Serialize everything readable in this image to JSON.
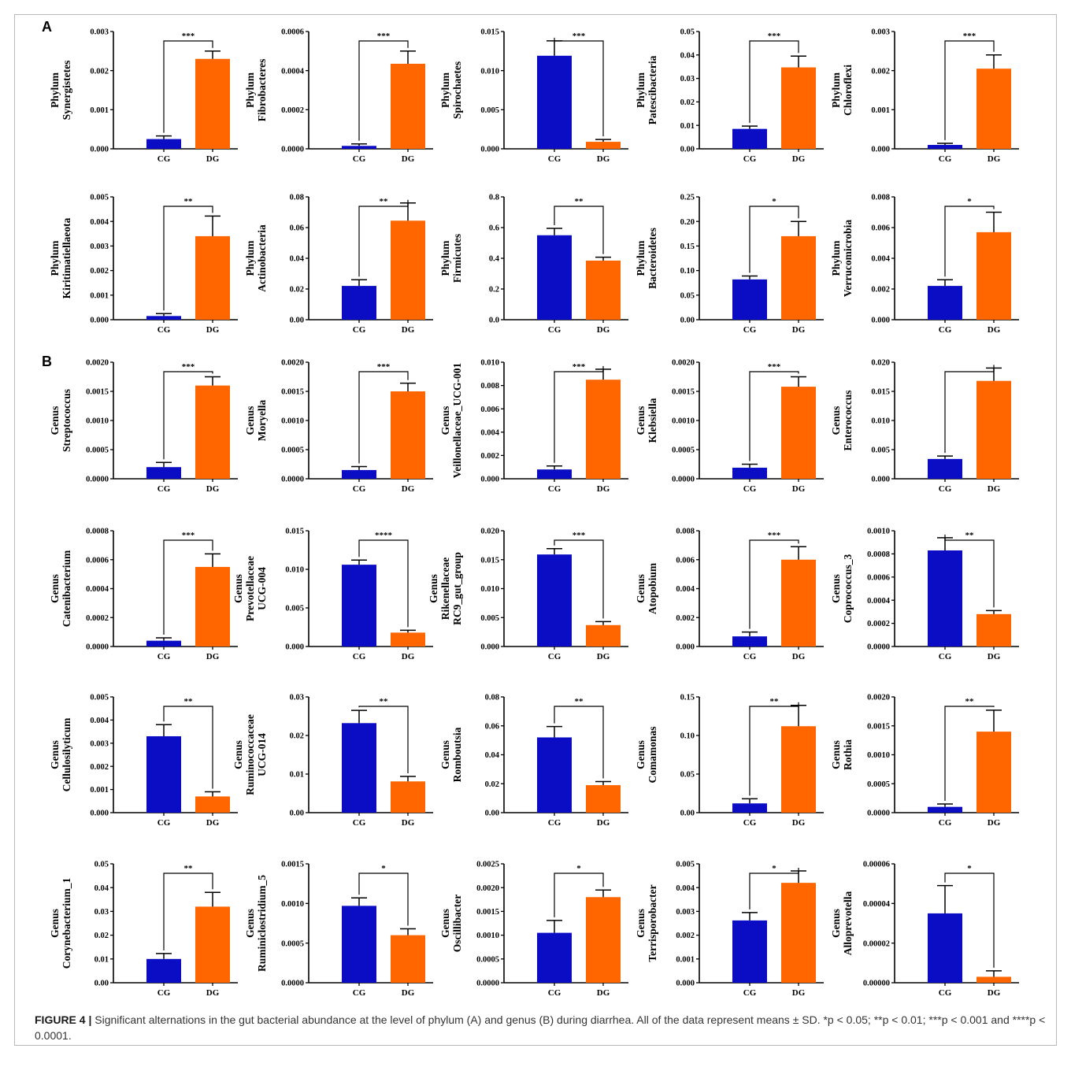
{
  "panel_labels": [
    "A",
    "B"
  ],
  "colors": {
    "CG": "#0b0dc4",
    "DG": "#ff6600"
  },
  "caption": {
    "label": "FIGURE 4 |",
    "text": " Significant alternations in the gut bacterial abundance at the level of phylum (A) and genus (B) during diarrhea. All of the data represent means ± SD. *p < 0.05; **p < 0.01; ***p < 0.001 and ****p < 0.0001."
  },
  "chart_data": [
    {
      "type": "bar",
      "ylabel": [
        "Phylum",
        "Synergistetes"
      ],
      "categories": [
        "CG",
        "DG"
      ],
      "values": [
        0.00025,
        0.0023
      ],
      "errors": [
        8e-05,
        0.0002
      ],
      "ylim": [
        0,
        0.003
      ],
      "yticks": [
        "0.000",
        "0.001",
        "0.002",
        "0.003"
      ],
      "significance": "***"
    },
    {
      "type": "bar",
      "ylabel": [
        "Phylum",
        "Fibrobacteres"
      ],
      "categories": [
        "CG",
        "DG"
      ],
      "values": [
        1.5e-05,
        0.000435
      ],
      "errors": [
        1e-05,
        6.5e-05
      ],
      "ylim": [
        0,
        0.0006
      ],
      "yticks": [
        "0.0000",
        "0.0002",
        "0.0004",
        "0.0006"
      ],
      "significance": "***"
    },
    {
      "type": "bar",
      "ylabel": [
        "Phylum",
        "Spirochaetes"
      ],
      "categories": [
        "CG",
        "DG"
      ],
      "values": [
        0.0119,
        0.0009
      ],
      "errors": [
        0.0019,
        0.0003
      ],
      "ylim": [
        0,
        0.015
      ],
      "yticks": [
        "0.000",
        "0.005",
        "0.010",
        "0.015"
      ],
      "significance": "***"
    },
    {
      "type": "bar",
      "ylabel": [
        "Phylum",
        "Patescibacteria"
      ],
      "categories": [
        "CG",
        "DG"
      ],
      "values": [
        0.0085,
        0.0347
      ],
      "errors": [
        0.0012,
        0.0048
      ],
      "ylim": [
        0,
        0.05
      ],
      "yticks": [
        "0.00",
        "0.01",
        "0.02",
        "0.03",
        "0.04",
        "0.05"
      ],
      "significance": "***"
    },
    {
      "type": "bar",
      "ylabel": [
        "Phylum",
        "Chloroflexi"
      ],
      "categories": [
        "CG",
        "DG"
      ],
      "values": [
        0.0001,
        0.00205
      ],
      "errors": [
        4e-05,
        0.00035
      ],
      "ylim": [
        0,
        0.003
      ],
      "yticks": [
        "0.000",
        "0.001",
        "0.002",
        "0.003"
      ],
      "significance": "***"
    },
    {
      "type": "bar",
      "ylabel": [
        "Phylum",
        "Kiritimatiellaeota"
      ],
      "categories": [
        "CG",
        "DG"
      ],
      "values": [
        0.00015,
        0.0034
      ],
      "errors": [
        0.0001,
        0.00082
      ],
      "ylim": [
        0,
        0.005
      ],
      "yticks": [
        "0.000",
        "0.001",
        "0.002",
        "0.003",
        "0.004",
        "0.005"
      ],
      "significance": "**"
    },
    {
      "type": "bar",
      "ylabel": [
        "Phylum",
        "Actinobacteria"
      ],
      "categories": [
        "CG",
        "DG"
      ],
      "values": [
        0.022,
        0.0645
      ],
      "errors": [
        0.004,
        0.0115
      ],
      "ylim": [
        0,
        0.08
      ],
      "yticks": [
        "0.00",
        "0.02",
        "0.04",
        "0.06",
        "0.08"
      ],
      "significance": "**"
    },
    {
      "type": "bar",
      "ylabel": [
        "Phylum",
        "Firmicutes"
      ],
      "categories": [
        "CG",
        "DG"
      ],
      "values": [
        0.55,
        0.385
      ],
      "errors": [
        0.045,
        0.022
      ],
      "ylim": [
        0,
        0.8
      ],
      "yticks": [
        "0.0",
        "0.2",
        "0.4",
        "0.6",
        "0.8"
      ],
      "significance": "**"
    },
    {
      "type": "bar",
      "ylabel": [
        "Phylum",
        "Bacteroidetes"
      ],
      "categories": [
        "CG",
        "DG"
      ],
      "values": [
        0.082,
        0.17
      ],
      "errors": [
        0.007,
        0.03
      ],
      "ylim": [
        0,
        0.25
      ],
      "yticks": [
        "0.00",
        "0.05",
        "0.10",
        "0.15",
        "0.20",
        "0.25"
      ],
      "significance": "*"
    },
    {
      "type": "bar",
      "ylabel": [
        "Phylum",
        "Verrucomicrobia"
      ],
      "categories": [
        "CG",
        "DG"
      ],
      "values": [
        0.0022,
        0.0057
      ],
      "errors": [
        0.0004,
        0.0013
      ],
      "ylim": [
        0,
        0.008
      ],
      "yticks": [
        "0.000",
        "0.002",
        "0.004",
        "0.006",
        "0.008"
      ],
      "significance": "*"
    },
    {
      "type": "bar",
      "ylabel": [
        "Genus",
        "Streptococcus"
      ],
      "categories": [
        "CG",
        "DG"
      ],
      "values": [
        0.0002,
        0.0016
      ],
      "errors": [
        8e-05,
        0.00015
      ],
      "ylim": [
        0,
        0.002
      ],
      "yticks": [
        "0.0000",
        "0.0005",
        "0.0010",
        "0.0015",
        "0.0020"
      ],
      "significance": "***"
    },
    {
      "type": "bar",
      "ylabel": [
        "Genus",
        "Moryella"
      ],
      "categories": [
        "CG",
        "DG"
      ],
      "values": [
        0.00015,
        0.0015
      ],
      "errors": [
        6e-05,
        0.00014
      ],
      "ylim": [
        0,
        0.002
      ],
      "yticks": [
        "0.0000",
        "0.0005",
        "0.0010",
        "0.0015",
        "0.0020"
      ],
      "significance": "***"
    },
    {
      "type": "bar",
      "ylabel": [
        "Genus",
        "Veillonellaceae_UCG-001"
      ],
      "categories": [
        "CG",
        "DG"
      ],
      "values": [
        0.0008,
        0.0085
      ],
      "errors": [
        0.0003,
        0.0009
      ],
      "ylim": [
        0,
        0.01
      ],
      "yticks": [
        "0.000",
        "0.002",
        "0.004",
        "0.006",
        "0.008",
        "0.010"
      ],
      "significance": "***"
    },
    {
      "type": "bar",
      "ylabel": [
        "Genus",
        "Klebsiella"
      ],
      "categories": [
        "CG",
        "DG"
      ],
      "values": [
        0.00019,
        0.00158
      ],
      "errors": [
        6e-05,
        0.00017
      ],
      "ylim": [
        0,
        0.002
      ],
      "yticks": [
        "0.0000",
        "0.0005",
        "0.0010",
        "0.0015",
        "0.0020"
      ],
      "significance": "***"
    },
    {
      "type": "bar",
      "ylabel": [
        "Genus",
        "Enterococcus"
      ],
      "categories": [
        "CG",
        "DG"
      ],
      "values": [
        0.0034,
        0.0168
      ],
      "errors": [
        0.0005,
        0.0022
      ],
      "ylim": [
        0,
        0.02
      ],
      "yticks": [
        "0.000",
        "0.005",
        "0.010",
        "0.015",
        "0.020"
      ],
      "significance": ""
    },
    {
      "type": "bar",
      "ylabel": [
        "Genus",
        "Catenibacterium"
      ],
      "categories": [
        "CG",
        "DG"
      ],
      "values": [
        4e-05,
        0.00055
      ],
      "errors": [
        2e-05,
        9e-05
      ],
      "ylim": [
        0,
        0.0008
      ],
      "yticks": [
        "0.0000",
        "0.0002",
        "0.0004",
        "0.0006",
        "0.0008"
      ],
      "significance": "***"
    },
    {
      "type": "bar",
      "ylabel": [
        "Genus",
        "Prevotellaceae",
        "UCG-004"
      ],
      "categories": [
        "CG",
        "DG"
      ],
      "values": [
        0.0106,
        0.0018
      ],
      "errors": [
        0.0006,
        0.0003
      ],
      "ylim": [
        0,
        0.015
      ],
      "yticks": [
        "0.000",
        "0.005",
        "0.010",
        "0.015"
      ],
      "significance": "****"
    },
    {
      "type": "bar",
      "ylabel": [
        "Genus",
        "Rikenellaceae",
        "RC9_gut_group"
      ],
      "categories": [
        "CG",
        "DG"
      ],
      "values": [
        0.0159,
        0.0037
      ],
      "errors": [
        0.001,
        0.0006
      ],
      "ylim": [
        0,
        0.02
      ],
      "yticks": [
        "0.000",
        "0.005",
        "0.010",
        "0.015",
        "0.020"
      ],
      "significance": "***"
    },
    {
      "type": "bar",
      "ylabel": [
        "Genus",
        "Atopobium"
      ],
      "categories": [
        "CG",
        "DG"
      ],
      "values": [
        0.0007,
        0.006
      ],
      "errors": [
        0.0003,
        0.0009
      ],
      "ylim": [
        0,
        0.008
      ],
      "yticks": [
        "0.000",
        "0.002",
        "0.004",
        "0.006",
        "0.008"
      ],
      "significance": "***"
    },
    {
      "type": "bar",
      "ylabel": [
        "Genus",
        "Coprococcus_3"
      ],
      "categories": [
        "CG",
        "DG"
      ],
      "values": [
        0.00083,
        0.00028
      ],
      "errors": [
        0.00011,
        3e-05
      ],
      "ylim": [
        0,
        0.001
      ],
      "yticks": [
        "0.0000",
        "0.0002",
        "0.0004",
        "0.0006",
        "0.0008",
        "0.0010"
      ],
      "significance": "**"
    },
    {
      "type": "bar",
      "ylabel": [
        "Genus",
        "Cellulosilyticum"
      ],
      "categories": [
        "CG",
        "DG"
      ],
      "values": [
        0.0033,
        0.0007
      ],
      "errors": [
        0.0005,
        0.0002
      ],
      "ylim": [
        0,
        0.005
      ],
      "yticks": [
        "0.000",
        "0.001",
        "0.002",
        "0.003",
        "0.004",
        "0.005"
      ],
      "significance": "**"
    },
    {
      "type": "bar",
      "ylabel": [
        "Genus",
        "Ruminococcaceae",
        "UCG-014"
      ],
      "categories": [
        "CG",
        "DG"
      ],
      "values": [
        0.0232,
        0.0081
      ],
      "errors": [
        0.0033,
        0.0013
      ],
      "ylim": [
        0,
        0.03
      ],
      "yticks": [
        "0.00",
        "0.01",
        "0.02",
        "0.03"
      ],
      "significance": "**"
    },
    {
      "type": "bar",
      "ylabel": [
        "Genus",
        "Romboutsia"
      ],
      "categories": [
        "CG",
        "DG"
      ],
      "values": [
        0.052,
        0.019
      ],
      "errors": [
        0.0075,
        0.0025
      ],
      "ylim": [
        0,
        0.08
      ],
      "yticks": [
        "0.00",
        "0.02",
        "0.04",
        "0.06",
        "0.08"
      ],
      "significance": "**"
    },
    {
      "type": "bar",
      "ylabel": [
        "Genus",
        "Comamonas"
      ],
      "categories": [
        "CG",
        "DG"
      ],
      "values": [
        0.012,
        0.112
      ],
      "errors": [
        0.006,
        0.027
      ],
      "ylim": [
        0,
        0.15
      ],
      "yticks": [
        "0.00",
        "0.05",
        "0.10",
        "0.15"
      ],
      "significance": "**"
    },
    {
      "type": "bar",
      "ylabel": [
        "Genus",
        "Rothia"
      ],
      "categories": [
        "CG",
        "DG"
      ],
      "values": [
        0.0001,
        0.0014
      ],
      "errors": [
        5e-05,
        0.00037
      ],
      "ylim": [
        0,
        0.002
      ],
      "yticks": [
        "0.0000",
        "0.0005",
        "0.0010",
        "0.0015",
        "0.0020"
      ],
      "significance": "**"
    },
    {
      "type": "bar",
      "ylabel": [
        "Genus",
        "Corynebacterium_1"
      ],
      "categories": [
        "CG",
        "DG"
      ],
      "values": [
        0.01,
        0.032
      ],
      "errors": [
        0.0023,
        0.006
      ],
      "ylim": [
        0,
        0.05
      ],
      "yticks": [
        "0.00",
        "0.01",
        "0.02",
        "0.03",
        "0.04",
        "0.05"
      ],
      "significance": "**"
    },
    {
      "type": "bar",
      "ylabel": [
        "Genus",
        "Ruminiclostridium_5"
      ],
      "categories": [
        "CG",
        "DG"
      ],
      "values": [
        0.00097,
        0.0006
      ],
      "errors": [
        0.0001,
        8e-05
      ],
      "ylim": [
        0,
        0.0015
      ],
      "yticks": [
        "0.0000",
        "0.0005",
        "0.0010",
        "0.0015"
      ],
      "significance": "*"
    },
    {
      "type": "bar",
      "ylabel": [
        "Genus",
        "Oscillibacter"
      ],
      "categories": [
        "CG",
        "DG"
      ],
      "values": [
        0.00105,
        0.0018
      ],
      "errors": [
        0.00026,
        0.00015
      ],
      "ylim": [
        0,
        0.0025
      ],
      "yticks": [
        "0.0000",
        "0.0005",
        "0.0010",
        "0.0015",
        "0.0020",
        "0.0025"
      ],
      "significance": "*"
    },
    {
      "type": "bar",
      "ylabel": [
        "Genus",
        "Terrisporobacter"
      ],
      "categories": [
        "CG",
        "DG"
      ],
      "values": [
        0.00262,
        0.0042
      ],
      "errors": [
        0.00033,
        0.0005
      ],
      "ylim": [
        0,
        0.005
      ],
      "yticks": [
        "0.000",
        "0.001",
        "0.002",
        "0.003",
        "0.004",
        "0.005"
      ],
      "significance": "*"
    },
    {
      "type": "bar",
      "ylabel": [
        "Genus",
        "Alloprevotella"
      ],
      "categories": [
        "CG",
        "DG"
      ],
      "values": [
        3.5e-05,
        3e-06
      ],
      "errors": [
        1.4e-05,
        3e-06
      ],
      "ylim": [
        0,
        6e-05
      ],
      "yticks": [
        "0.00000",
        "0.00002",
        "0.00004",
        "0.00006"
      ],
      "significance": "*"
    }
  ]
}
